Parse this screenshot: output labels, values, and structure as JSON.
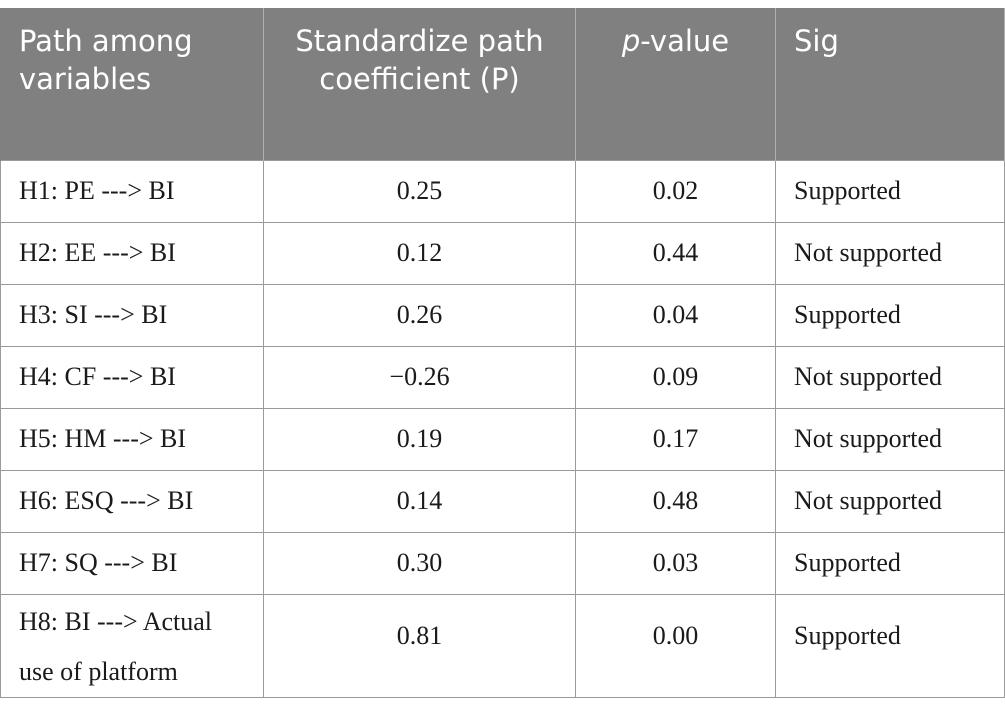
{
  "table": {
    "headers": {
      "path": "Path among variables",
      "coef": "Standardize path coefficient (P)",
      "p_prefix": "p",
      "p_suffix": "-value",
      "sig": "Sig"
    },
    "rows": [
      {
        "path": "H1: PE ---˃ BI",
        "coef": "0.25",
        "p": "0.02",
        "sig": "Supported"
      },
      {
        "path": "H2: EE ---˃ BI",
        "coef": "0.12",
        "p": "0.44",
        "sig": "Not supported"
      },
      {
        "path": "H3: SI ---˃ BI",
        "coef": "0.26",
        "p": "0.04",
        "sig": "Supported"
      },
      {
        "path": "H4: CF ---˃ BI",
        "coef": "−0.26",
        "p": "0.09",
        "sig": "Not supported"
      },
      {
        "path": "H5: HM ---˃ BI",
        "coef": "0.19",
        "p": "0.17",
        "sig": "Not supported"
      },
      {
        "path": "H6: ESQ ---˃ BI",
        "coef": "0.14",
        "p": "0.48",
        "sig": "Not supported"
      },
      {
        "path": "H7: SQ ---˃ BI",
        "coef": "0.30",
        "p": "0.03",
        "sig": "Supported"
      },
      {
        "path": "H8: BI ---˃ Actual use of platform",
        "coef": "0.81",
        "p": "0.00",
        "sig": "Supported"
      }
    ]
  }
}
